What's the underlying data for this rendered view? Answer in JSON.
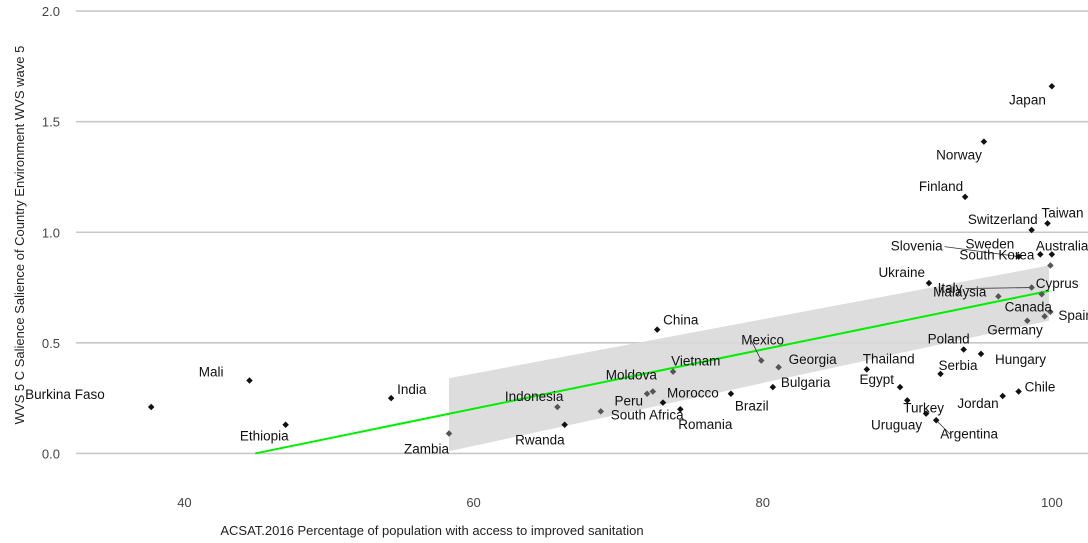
{
  "chart_data": {
    "type": "scatter",
    "title": "",
    "xlabel": "ACSAT.2016 Percentage of population with access to improved sanitation",
    "ylabel": "WVS 5 C Salience Salience of Country Environment WVS wave 5",
    "xlim": [
      32.5,
      102.5
    ],
    "ylim": [
      -0.12,
      2.05
    ],
    "x_ticks": [
      40,
      60,
      80,
      100
    ],
    "y_ticks": [
      0.0,
      0.5,
      1.0,
      1.5,
      2.0
    ],
    "y_tick_labels": [
      "0.0",
      "0.5",
      "1.0",
      "1.5",
      "2.0"
    ],
    "grid": true,
    "grid_style": "horizontal lines only",
    "point_color": "#111111",
    "trend_color": "#00ee00",
    "ribbon_color": "#d9d9d9",
    "trend_line": {
      "x": [
        44.9,
        99.8
      ],
      "y": [
        0.0,
        0.735
      ]
    },
    "confidence_band": {
      "x": [
        58.3,
        99.8
      ],
      "upper": [
        0.34,
        0.85
      ],
      "lower": [
        0.01,
        0.6
      ]
    },
    "points": [
      {
        "label": "Burkina Faso",
        "x": 37.7,
        "y": 0.21
      },
      {
        "label": "Mali",
        "x": 44.5,
        "y": 0.33
      },
      {
        "label": "Ethiopia",
        "x": 47.0,
        "y": 0.13
      },
      {
        "label": "India",
        "x": 54.3,
        "y": 0.25
      },
      {
        "label": "Zambia",
        "x": 58.3,
        "y": 0.09
      },
      {
        "label": "Indonesia",
        "x": 65.8,
        "y": 0.21
      },
      {
        "label": "Rwanda",
        "x": 66.3,
        "y": 0.13
      },
      {
        "label": "South Africa",
        "x": 68.8,
        "y": 0.19
      },
      {
        "label": "China",
        "x": 72.7,
        "y": 0.56
      },
      {
        "label": "Moldova",
        "x": 72.4,
        "y": 0.28
      },
      {
        "label": "Peru",
        "x": 72.0,
        "y": 0.27
      },
      {
        "label": "Morocco",
        "x": 73.1,
        "y": 0.23
      },
      {
        "label": "Romania",
        "x": 74.3,
        "y": 0.2
      },
      {
        "label": "Vietnam",
        "x": 73.8,
        "y": 0.37
      },
      {
        "label": "Brazil",
        "x": 77.8,
        "y": 0.27
      },
      {
        "label": "Mexico",
        "x": 79.9,
        "y": 0.42
      },
      {
        "label": "Georgia",
        "x": 81.1,
        "y": 0.39
      },
      {
        "label": "Bulgaria",
        "x": 80.7,
        "y": 0.3
      },
      {
        "label": "Thailand",
        "x": 87.2,
        "y": 0.38
      },
      {
        "label": "Egypt",
        "x": 89.5,
        "y": 0.3
      },
      {
        "label": "Turkey",
        "x": 90.0,
        "y": 0.24
      },
      {
        "label": "Uruguay",
        "x": 91.3,
        "y": 0.18
      },
      {
        "label": "Argentina",
        "x": 92.0,
        "y": 0.15
      },
      {
        "label": "Serbia",
        "x": 92.3,
        "y": 0.36
      },
      {
        "label": "Poland",
        "x": 93.9,
        "y": 0.47
      },
      {
        "label": "Hungary",
        "x": 95.1,
        "y": 0.45
      },
      {
        "label": "Jordan",
        "x": 96.6,
        "y": 0.26
      },
      {
        "label": "Chile",
        "x": 97.7,
        "y": 0.28
      },
      {
        "label": "Germany",
        "x": 98.3,
        "y": 0.6
      },
      {
        "label": "Malaysia",
        "x": 96.3,
        "y": 0.71
      },
      {
        "label": "Canada",
        "x": 99.5,
        "y": 0.62
      },
      {
        "label": "Spain",
        "x": 99.9,
        "y": 0.64
      },
      {
        "label": "Ukraine",
        "x": 91.5,
        "y": 0.77
      },
      {
        "label": "Italy",
        "x": 98.6,
        "y": 0.75
      },
      {
        "label": "Cyprus",
        "x": 99.3,
        "y": 0.72
      },
      {
        "label": "South Korea",
        "x": 99.9,
        "y": 0.85
      },
      {
        "label": "Slovenia",
        "x": 97.7,
        "y": 0.89
      },
      {
        "label": "Sweden",
        "x": 99.2,
        "y": 0.9
      },
      {
        "label": "Australia",
        "x": 100.0,
        "y": 0.9
      },
      {
        "label": "Switzerland",
        "x": 98.6,
        "y": 1.01
      },
      {
        "label": "Taiwan",
        "x": 99.7,
        "y": 1.04
      },
      {
        "label": "Finland",
        "x": 94.0,
        "y": 1.16
      },
      {
        "label": "Norway",
        "x": 95.3,
        "y": 1.41
      },
      {
        "label": "Japan",
        "x": 100.0,
        "y": 1.66
      }
    ]
  }
}
